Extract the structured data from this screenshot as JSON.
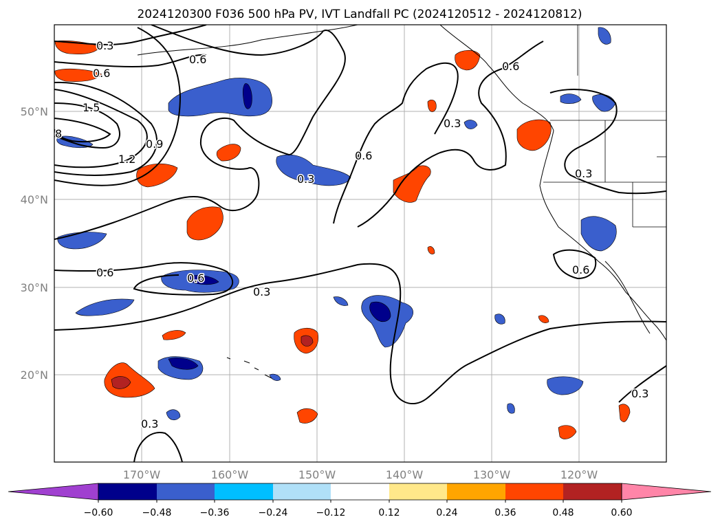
{
  "title": "2024120300 F036 500 hPa PV, IVT Landfall PC (2024120512 - 2024120812)",
  "map": {
    "lat_labels": [
      "50°N",
      "40°N",
      "30°N",
      "20°N"
    ],
    "lon_labels": [
      "170°W",
      "160°W",
      "150°W",
      "140°W",
      "130°W",
      "120°W"
    ],
    "contour_labels": [
      "0.3",
      "0.6",
      "1.5",
      "8",
      "1.2",
      "0.9",
      "0.6",
      "0.3",
      "0.6",
      "0.3",
      "0.6",
      "0.3",
      "0.6",
      "0.6",
      "0.3",
      "0.3",
      "0.3",
      "0.6"
    ],
    "colors": {
      "positive": [
        "#ffe88a",
        "#ffa500",
        "#ff4500",
        "#b22222"
      ],
      "negative": [
        "#b0e0f8",
        "#00bfff",
        "#3a5fcd",
        "#00008b"
      ]
    }
  },
  "colorbar": {
    "tick_labels": [
      "−0.60",
      "−0.48",
      "−0.36",
      "−0.24",
      "−0.12",
      "0.12",
      "0.24",
      "0.36",
      "0.48",
      "0.60"
    ],
    "colors": [
      "#a040d0",
      "#00008b",
      "#3a5fcd",
      "#00bfff",
      "#b0e0f8",
      "#ffffff",
      "#ffe88a",
      "#ffa500",
      "#ff4500",
      "#b22222",
      "#ff85a8"
    ]
  }
}
